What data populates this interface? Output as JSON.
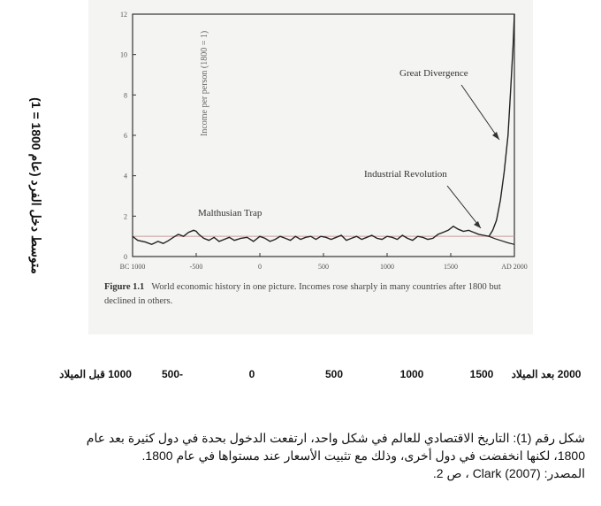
{
  "chart_data": {
    "type": "line",
    "xlabel": "",
    "ylabel": "Income per person (1800 = 1)",
    "ylim": [
      0,
      12
    ],
    "yticks": [
      0,
      2,
      4,
      6,
      8,
      10,
      12
    ],
    "xlim": [
      -1000,
      2000
    ],
    "xtick_values": [
      -1000,
      -500,
      0,
      500,
      1000,
      1500,
      2000
    ],
    "xtick_labels": [
      "BC 1000",
      "-500",
      "0",
      "500",
      "1000",
      "1500",
      "AD 2000"
    ],
    "grid": false,
    "series": [
      {
        "x": [
          -1000,
          -960,
          -900,
          -850,
          -800,
          -760,
          -720,
          -680,
          -640,
          -600,
          -560,
          -520,
          -500,
          -480,
          -440,
          -400,
          -360,
          -320,
          -280,
          -240,
          -200,
          -150,
          -100,
          -50,
          0,
          40,
          80,
          120,
          160,
          200,
          240,
          280,
          320,
          360,
          400,
          440,
          480,
          520,
          560,
          600,
          640,
          680,
          720,
          760,
          800,
          840,
          880,
          920,
          960,
          1000,
          1040,
          1080,
          1120,
          1160,
          1200,
          1240,
          1280,
          1320,
          1360,
          1400,
          1440,
          1480,
          1520,
          1560,
          1600,
          1640,
          1680,
          1720,
          1760,
          1800,
          1830,
          1860,
          1890,
          1920,
          1950,
          1970,
          1990,
          2000
        ],
        "values": [
          1.0,
          0.8,
          0.72,
          0.6,
          0.75,
          0.65,
          0.78,
          0.95,
          1.1,
          1.0,
          1.2,
          1.3,
          1.25,
          1.1,
          0.9,
          0.8,
          0.95,
          0.75,
          0.85,
          0.95,
          0.8,
          0.9,
          0.95,
          0.75,
          1.0,
          0.9,
          0.75,
          0.85,
          1.0,
          0.9,
          0.8,
          1.0,
          0.85,
          0.95,
          1.0,
          0.85,
          1.0,
          0.95,
          0.85,
          0.95,
          1.05,
          0.8,
          0.9,
          1.0,
          0.85,
          0.95,
          1.05,
          0.9,
          0.85,
          1.0,
          0.95,
          0.85,
          1.05,
          0.9,
          0.8,
          1.0,
          0.95,
          0.85,
          0.9,
          1.1,
          1.2,
          1.3,
          1.5,
          1.35,
          1.25,
          1.3,
          1.2,
          1.1,
          1.05,
          1.0,
          1.3,
          1.8,
          2.8,
          4.2,
          6.0,
          8.2,
          10.5,
          12.0
        ]
      },
      {
        "x": [
          1800,
          1850,
          1900,
          1950,
          2000
        ],
        "values": [
          1.0,
          0.88,
          0.78,
          0.68,
          0.6
        ]
      }
    ],
    "reference_line": 1,
    "annotations": [
      "Malthusian Trap",
      "Industrial Revolution",
      "Great Divergence"
    ]
  },
  "figure": {
    "number": "Figure 1.1",
    "caption": "World economic history in one picture. Incomes rose sharply in many countries after 1800 but declined in others."
  },
  "arabic": {
    "ylabel": "متوسط دخل الفرد (عام 1800 = 1)",
    "xticks": [
      "1000 قبل الميلاد",
      "-500",
      "0",
      "500",
      "1000",
      "1500",
      "2000 بعد الميلاد"
    ],
    "note_line1": "شكل رقم (1): التاريخ الاقتصادي للعالم في شكل واحد، ارتفعت الدخول بحدة في دول كثيرة بعد عام",
    "note_line2": "1800، لكنها انخفضت في دول أخرى، وذلك مع تثبيت الأسعار عند مستواها في عام 1800.",
    "note_line3": "المصدر: Clark (2007) ، ص 2."
  },
  "colors": {
    "line": "#222222",
    "reference": "#c89a9a",
    "axis": "#333333"
  }
}
